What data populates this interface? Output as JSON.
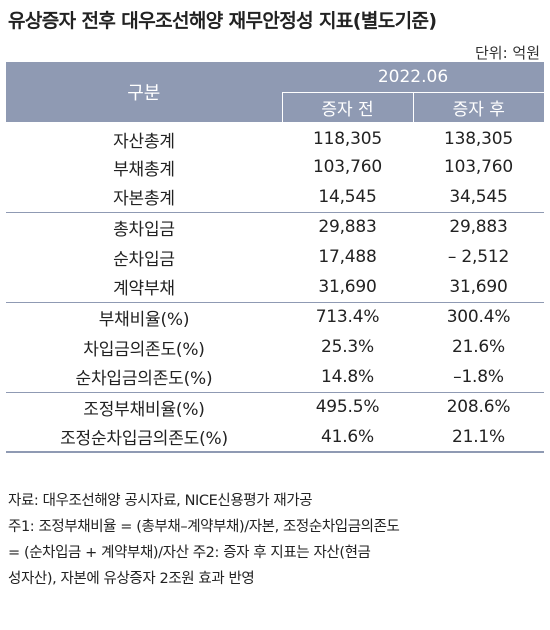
{
  "title": "유상증자 전후 대우조선해양 재무안정성 지표(별도기준)",
  "unit": "단위: 억원",
  "table": {
    "row_header": "구분",
    "period": "2022.06",
    "columns": [
      "증자 전",
      "증자 후"
    ],
    "rows": [
      {
        "label": "자산총계",
        "before": "118,305",
        "after": "138,305"
      },
      {
        "label": "부채총계",
        "before": "103,760",
        "after": "103,760"
      },
      {
        "label": "자본총계",
        "before": "14,545",
        "after": "34,545"
      },
      {
        "label": "총차입금",
        "before": "29,883",
        "after": "29,883"
      },
      {
        "label": "순차입금",
        "before": "17,488",
        "after": "– 2,512"
      },
      {
        "label": "계약부채",
        "before": "31,690",
        "after": "31,690"
      },
      {
        "label": "부채비율(%)",
        "before": "713.4%",
        "after": "300.4%"
      },
      {
        "label": "차입금의존도(%)",
        "before": "25.3%",
        "after": "21.6%"
      },
      {
        "label": "순차입금의존도(%)",
        "before": "14.8%",
        "after": "–1.8%"
      },
      {
        "label": "조정부채비율(%)",
        "before": "495.5%",
        "after": "208.6%"
      },
      {
        "label": "조정순차입금의존도(%)",
        "before": "41.6%",
        "after": "21.1%"
      }
    ]
  },
  "notes": [
    "자료: 대우조선해양 공시자료, NICE신용평가 재가공",
    "주1: 조정부채비율 = (총부채–계약부채)/자본, 조정순차입금의존도",
    "= (순차입금 + 계약부채)/자산 주2: 증자 후 지표는 자산(현금",
    "성자산), 자본에 유상증자 2조원 효과 반영"
  ]
}
